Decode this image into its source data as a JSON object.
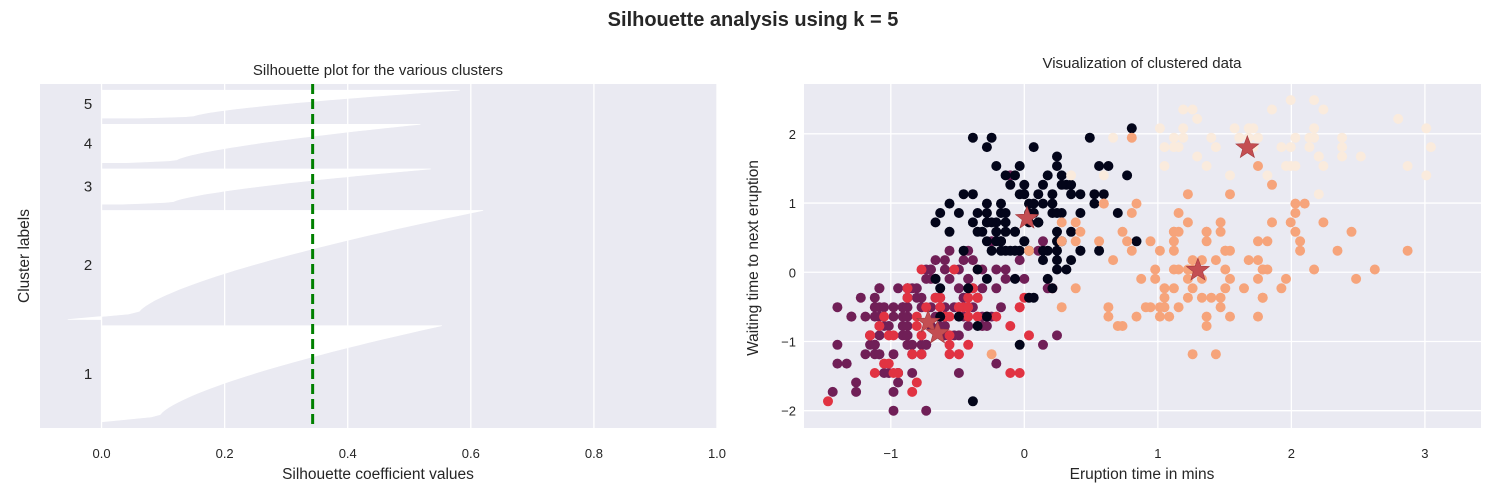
{
  "figure_title": "Silhouette analysis using k = 5",
  "colors": {
    "axes_bg": "#eaeaf2",
    "grid": "#ffffff",
    "silhouette_fill": "#ffffff",
    "avg_line": "#008000",
    "centroid": "#c44e52",
    "cluster_colors": [
      "#03051a",
      "#701f57",
      "#e13342",
      "#f6a47b",
      "#faebdd"
    ]
  },
  "chart_data": [
    {
      "type": "silhouette",
      "title": "Silhouette plot for the various clusters",
      "xlabel": "Silhouette coefficient values",
      "ylabel": "Cluster labels",
      "xlim": [
        -0.1,
        1.0
      ],
      "xticks": [
        0.0,
        0.2,
        0.4,
        0.6,
        0.8,
        1.0
      ],
      "xtick_labels": [
        "0.0",
        "0.2",
        "0.4",
        "0.6",
        "0.8",
        "1.0"
      ],
      "grid": true,
      "average_silhouette_score": 0.343,
      "clusters": [
        {
          "label": "1",
          "size": 155,
          "max": 0.553,
          "min": 0.0
        },
        {
          "label": "2",
          "size": 176,
          "max": 0.62,
          "min": -0.055
        },
        {
          "label": "3",
          "size": 57,
          "max": 0.535,
          "min": 0.03
        },
        {
          "label": "4",
          "size": 62,
          "max": 0.518,
          "min": 0.04
        },
        {
          "label": "5",
          "size": 45,
          "max": 0.582,
          "min": 0.06
        }
      ]
    },
    {
      "type": "scatter",
      "title": "Visualization of clustered data",
      "xlabel": "Eruption time in mins",
      "ylabel": "Waiting time to next eruption",
      "xlim": [
        -1.65,
        3.42
      ],
      "ylim": [
        -2.25,
        2.72
      ],
      "xticks": [
        -1,
        0,
        1,
        2,
        3
      ],
      "xtick_labels": [
        "−1",
        "0",
        "1",
        "2",
        "3"
      ],
      "yticks": [
        -2,
        -1,
        0,
        1,
        2
      ],
      "ytick_labels": [
        "−2",
        "−1",
        "0",
        "1",
        "2"
      ],
      "grid": true,
      "centroids": [
        {
          "cluster": 0,
          "x": 0.02,
          "y": 0.78
        },
        {
          "cluster": 1,
          "x": -0.72,
          "y": -0.72
        },
        {
          "cluster": 2,
          "x": -0.65,
          "y": -0.88
        },
        {
          "cluster": 3,
          "x": 1.3,
          "y": 0.03
        },
        {
          "cluster": 4,
          "x": 1.67,
          "y": 1.8
        }
      ]
    }
  ]
}
